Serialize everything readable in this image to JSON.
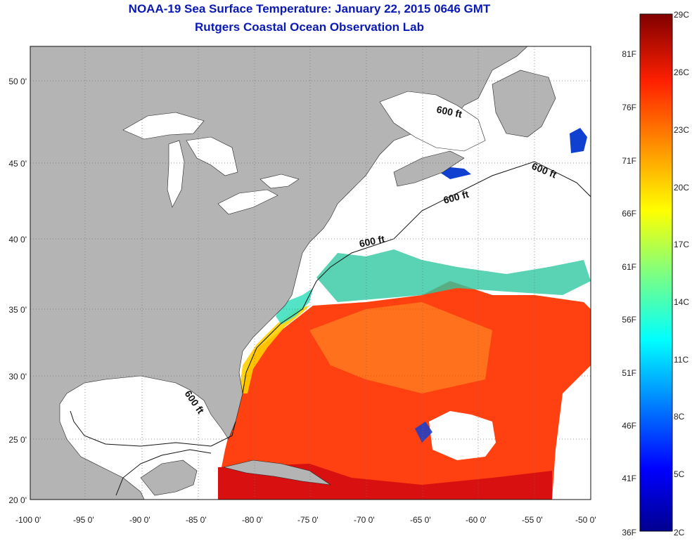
{
  "title": {
    "line1": "NOAA-19 Sea Surface Temperature:  January 22, 2015 0646 GMT",
    "line2": "Rutgers Coastal Ocean Observation Lab"
  },
  "map": {
    "lon_range": [
      -100,
      -50
    ],
    "lat_range": [
      20,
      52
    ],
    "lon_ticks": [
      "-100 0'",
      "-95 0'",
      "-90 0'",
      "-85 0'",
      "-80 0'",
      "-75 0'",
      "-70 0'",
      "-65 0'",
      "-60 0'",
      "-55 0'",
      "-50 0'"
    ],
    "lat_ticks": [
      "20 0'",
      "25 0'",
      "30 0'",
      "35 0'",
      "40 0'",
      "45 0'",
      "50 0'"
    ],
    "contour_labels": [
      "600 ft",
      "600 ft",
      "600 ft",
      "600 ft",
      "600 ft"
    ],
    "colors": {
      "land": "#b4b4b4",
      "no_data": "#ffffff",
      "grid": "#707070"
    }
  },
  "colorbar": {
    "celsius_labels": [
      "29C",
      "26C",
      "23C",
      "20C",
      "17C",
      "14C",
      "11C",
      "8C",
      "5C",
      "2C"
    ],
    "fahrenheit_labels": [
      "81F",
      "76F",
      "71F",
      "66F",
      "61F",
      "56F",
      "51F",
      "46F",
      "41F",
      "36F"
    ],
    "min_c": 2,
    "max_c": 29
  }
}
